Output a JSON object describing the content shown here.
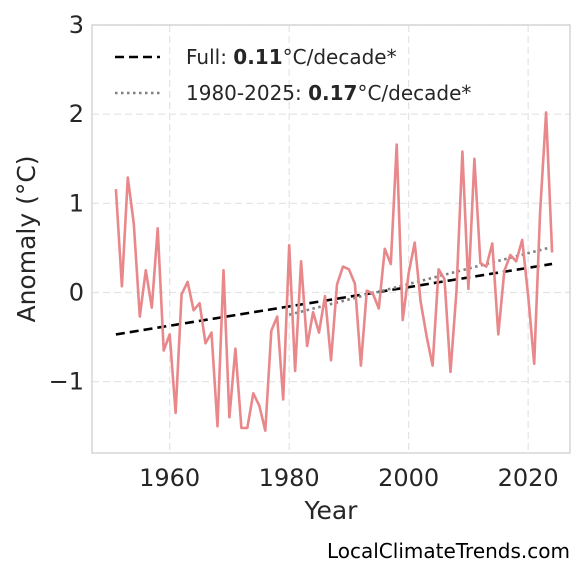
{
  "chart_data": {
    "type": "line",
    "xlabel": "Year",
    "ylabel": "Anomaly (°C)",
    "xlim": [
      1947,
      2027
    ],
    "ylim": [
      -1.8,
      3.0
    ],
    "xticks": [
      1960,
      1980,
      2000,
      2020
    ],
    "xtick_labels": [
      "1960",
      "1980",
      "2000",
      "2020"
    ],
    "yticks": [
      -1,
      0,
      1,
      2,
      3
    ],
    "ytick_labels": [
      "−1",
      "0",
      "1",
      "2",
      "3"
    ],
    "grid": true,
    "legend_position": "top-left",
    "series": [
      {
        "color": "#e8888b",
        "x": [
          1951,
          1952,
          1953,
          1954,
          1955,
          1956,
          1957,
          1958,
          1959,
          1960,
          1961,
          1962,
          1963,
          1964,
          1965,
          1966,
          1967,
          1968,
          1969,
          1970,
          1971,
          1972,
          1973,
          1974,
          1975,
          1976,
          1977,
          1978,
          1979,
          1980,
          1981,
          1982,
          1983,
          1984,
          1985,
          1986,
          1987,
          1988,
          1989,
          1990,
          1991,
          1992,
          1993,
          1994,
          1995,
          1996,
          1997,
          1998,
          1999,
          2000,
          2001,
          2002,
          2003,
          2004,
          2005,
          2006,
          2007,
          2008,
          2009,
          2010,
          2011,
          2012,
          2013,
          2014,
          2015,
          2016,
          2017,
          2018,
          2019,
          2020,
          2021,
          2022,
          2023,
          2024
        ],
        "y": [
          1.16,
          0.07,
          1.29,
          0.77,
          -0.27,
          0.25,
          -0.17,
          0.72,
          -0.65,
          -0.47,
          -1.35,
          -0.02,
          0.12,
          -0.2,
          -0.12,
          -0.57,
          -0.45,
          -1.5,
          0.25,
          -1.4,
          -0.63,
          -1.52,
          -1.52,
          -1.13,
          -1.27,
          -1.55,
          -0.43,
          -0.27,
          -1.2,
          0.53,
          -0.88,
          0.35,
          -0.6,
          -0.22,
          -0.45,
          -0.04,
          -0.76,
          0.09,
          0.29,
          0.26,
          0.1,
          -0.82,
          0.02,
          -0.01,
          -0.18,
          0.49,
          0.32,
          1.66,
          -0.31,
          0.22,
          0.56,
          -0.1,
          -0.49,
          -0.82,
          0.26,
          0.15,
          -0.89,
          0.02,
          1.58,
          0.04,
          1.5,
          0.33,
          0.29,
          0.55,
          -0.47,
          0.24,
          0.42,
          0.35,
          0.59,
          -0.04,
          -0.8,
          0.9,
          2.02,
          0.45
        ]
      }
    ],
    "trend_lines": [
      {
        "label_prefix": "Full: ",
        "label_value": "0.11",
        "label_suffix": "°C/decade*",
        "style": "dashed",
        "color": "#000000",
        "x": [
          1951,
          2024
        ],
        "y": [
          -0.47,
          0.32
        ]
      },
      {
        "label_prefix": "1980-2025: ",
        "label_value": "0.17",
        "label_suffix": "°C/decade*",
        "style": "dotted",
        "color": "#808080",
        "x": [
          1980,
          2024
        ],
        "y": [
          -0.25,
          0.51
        ]
      }
    ]
  },
  "watermark": "LocalClimateTrends.com"
}
